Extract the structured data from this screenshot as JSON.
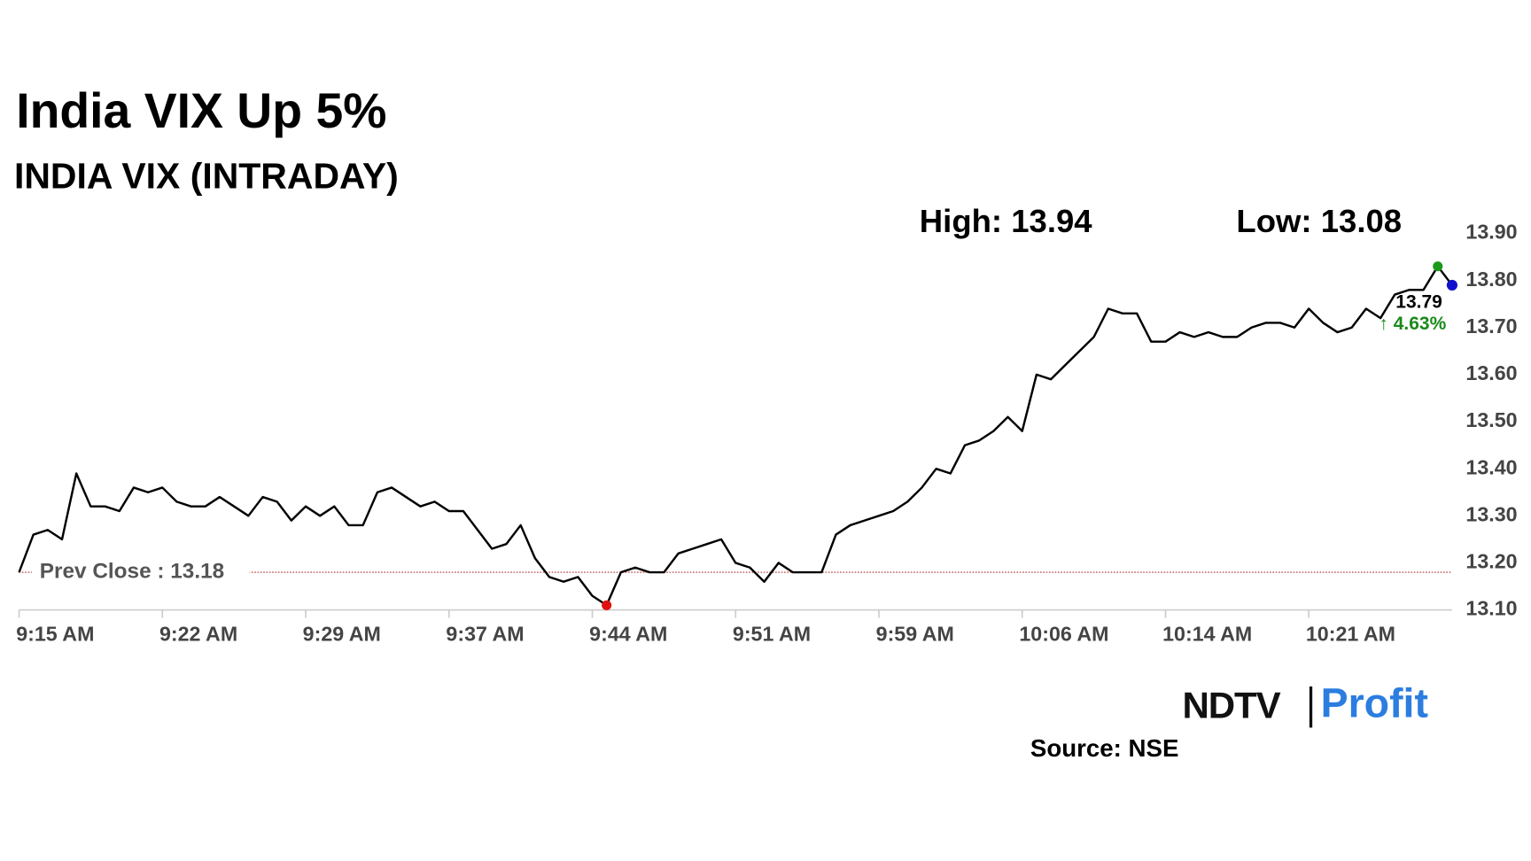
{
  "chart_data": {
    "type": "line",
    "title": "India VIX Up 5%",
    "subtitle": "INDIA VIX (INTRADAY)",
    "high_label": "High: 13.94",
    "low_label": "Low: 13.08",
    "last_label": "13.79",
    "change_label": "↑ 4.63%",
    "prev_close": {
      "value": 13.18,
      "label": "Prev Close : 13.18"
    },
    "source": "Source: NSE",
    "logo": {
      "brand": "NDTV",
      "product": "Profit"
    },
    "color": "#000000",
    "categories": [
      "9:15 AM",
      null,
      null,
      null,
      null,
      null,
      null,
      null,
      null,
      null,
      "9:22 AM",
      null,
      null,
      null,
      null,
      null,
      null,
      null,
      null,
      null,
      "9:29 AM",
      null,
      null,
      null,
      null,
      null,
      null,
      null,
      null,
      null,
      "9:37 AM",
      null,
      null,
      null,
      null,
      null,
      null,
      null,
      null,
      null,
      "9:44 AM",
      null,
      null,
      null,
      null,
      null,
      null,
      null,
      null,
      null,
      "9:51 AM",
      null,
      null,
      null,
      null,
      null,
      null,
      null,
      null,
      null,
      "9:59 AM",
      null,
      null,
      null,
      null,
      null,
      null,
      null,
      null,
      null,
      "10:06 AM",
      null,
      null,
      null,
      null,
      null,
      null,
      null,
      null,
      null,
      "10:14 AM",
      null,
      null,
      null,
      null,
      null,
      null,
      null,
      null,
      null,
      "10:21 AM",
      null,
      null,
      null,
      null,
      null,
      null,
      null,
      null,
      null,
      null
    ],
    "values": [
      13.18,
      13.26,
      13.27,
      13.25,
      13.39,
      13.32,
      13.32,
      13.31,
      13.36,
      13.35,
      13.36,
      13.33,
      13.32,
      13.32,
      13.34,
      13.32,
      13.3,
      13.34,
      13.33,
      13.29,
      13.32,
      13.3,
      13.32,
      13.28,
      13.28,
      13.35,
      13.36,
      13.34,
      13.32,
      13.33,
      13.31,
      13.31,
      13.27,
      13.23,
      13.24,
      13.28,
      13.21,
      13.17,
      13.16,
      13.17,
      13.13,
      13.11,
      13.18,
      13.19,
      13.18,
      13.18,
      13.22,
      13.23,
      13.24,
      13.25,
      13.2,
      13.19,
      13.16,
      13.2,
      13.18,
      13.18,
      13.18,
      13.26,
      13.28,
      13.29,
      13.3,
      13.31,
      13.33,
      13.36,
      13.4,
      13.39,
      13.45,
      13.46,
      13.48,
      13.51,
      13.48,
      13.6,
      13.59,
      13.62,
      13.65,
      13.68,
      13.74,
      13.73,
      13.73,
      13.67,
      13.67,
      13.69,
      13.68,
      13.69,
      13.68,
      13.68,
      13.7,
      13.71,
      13.71,
      13.7,
      13.74,
      13.71,
      13.69,
      13.7,
      13.74,
      13.72,
      13.77,
      13.78,
      13.78,
      13.83,
      13.79
    ],
    "ylim": [
      13.1,
      13.9
    ],
    "yticks": [
      {
        "value": 13.1,
        "label": "13.10"
      },
      {
        "value": 13.2,
        "label": "13.20"
      },
      {
        "value": 13.3,
        "label": "13.30"
      },
      {
        "value": 13.4,
        "label": "13.40"
      },
      {
        "value": 13.5,
        "label": "13.50"
      },
      {
        "value": 13.6,
        "label": "13.60"
      },
      {
        "value": 13.7,
        "label": "13.70"
      },
      {
        "value": 13.8,
        "label": "13.80"
      },
      {
        "value": 13.9,
        "label": "13.90"
      }
    ]
  }
}
